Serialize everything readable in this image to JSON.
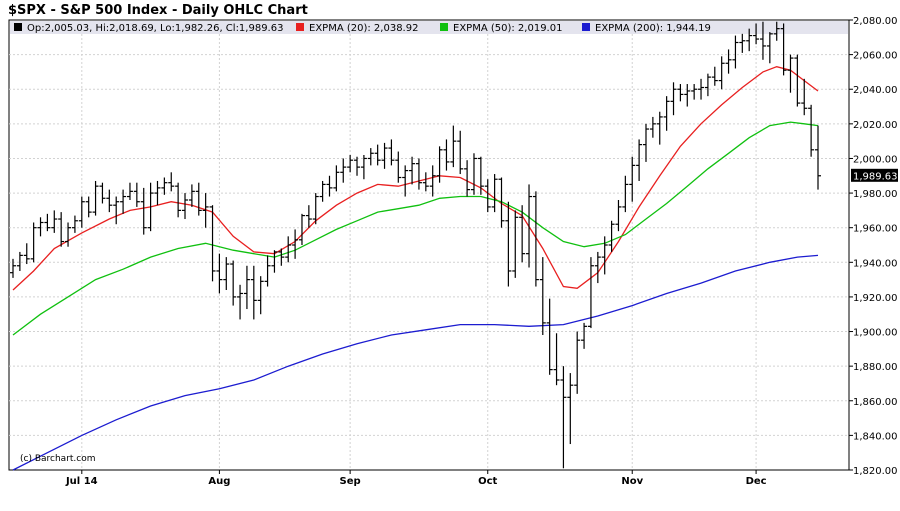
{
  "chart_data": {
    "type": "line",
    "title": "$SPX - S&P 500 Index - Daily OHLC Chart",
    "ohlc_readout": "Op:2,005.03, Hi:2,018.69, Lo:1,982.26, Cl:1,989.63",
    "last_close_label": "1,989.63",
    "credit": "(c) Barchart.com",
    "ylim": [
      1820,
      2080
    ],
    "y_ticks": [
      "2,080.00",
      "2,060.00",
      "2,040.00",
      "2,020.00",
      "2,000.00",
      "1,980.00",
      "1,960.00",
      "1,940.00",
      "1,920.00",
      "1,900.00",
      "1,880.00",
      "1,860.00",
      "1,840.00",
      "1,820.00"
    ],
    "y_tick_values": [
      2080,
      2060,
      2040,
      2020,
      2000,
      1980,
      1960,
      1940,
      1920,
      1900,
      1880,
      1860,
      1840,
      1820
    ],
    "x_range": [
      0,
      118
    ],
    "x_ticks": [
      {
        "label": "Jul 14",
        "x": 10
      },
      {
        "label": "Aug",
        "x": 30
      },
      {
        "label": "Sep",
        "x": 49
      },
      {
        "label": "Oct",
        "x": 69
      },
      {
        "label": "Nov",
        "x": 90
      },
      {
        "label": "Dec",
        "x": 108
      }
    ],
    "grid": true,
    "series": [
      {
        "name": "EXPMA (20): 2,038.92",
        "color": "#e82020",
        "points": [
          [
            0,
            1924
          ],
          [
            3,
            1935
          ],
          [
            6,
            1948
          ],
          [
            10,
            1957
          ],
          [
            14,
            1965
          ],
          [
            17,
            1970
          ],
          [
            20,
            1972
          ],
          [
            23,
            1975
          ],
          [
            26,
            1973
          ],
          [
            29,
            1969
          ],
          [
            32,
            1955
          ],
          [
            35,
            1946
          ],
          [
            38,
            1945
          ],
          [
            41,
            1952
          ],
          [
            44,
            1964
          ],
          [
            47,
            1973
          ],
          [
            50,
            1980
          ],
          [
            53,
            1985
          ],
          [
            56,
            1984
          ],
          [
            59,
            1987
          ],
          [
            62,
            1990
          ],
          [
            65,
            1989
          ],
          [
            68,
            1983
          ],
          [
            71,
            1974
          ],
          [
            74,
            1967
          ],
          [
            77,
            1948
          ],
          [
            80,
            1926
          ],
          [
            82,
            1925
          ],
          [
            85,
            1934
          ],
          [
            88,
            1952
          ],
          [
            91,
            1972
          ],
          [
            94,
            1990
          ],
          [
            97,
            2007
          ],
          [
            100,
            2020
          ],
          [
            103,
            2031
          ],
          [
            106,
            2041
          ],
          [
            109,
            2050
          ],
          [
            111,
            2053
          ],
          [
            113,
            2051
          ],
          [
            115,
            2045
          ],
          [
            117,
            2039
          ]
        ]
      },
      {
        "name": "EXPMA (50): 2,019.01",
        "color": "#10c010",
        "points": [
          [
            0,
            1898
          ],
          [
            4,
            1910
          ],
          [
            8,
            1920
          ],
          [
            12,
            1930
          ],
          [
            16,
            1936
          ],
          [
            20,
            1943
          ],
          [
            24,
            1948
          ],
          [
            28,
            1951
          ],
          [
            32,
            1947
          ],
          [
            35,
            1945
          ],
          [
            38,
            1943
          ],
          [
            41,
            1947
          ],
          [
            44,
            1953
          ],
          [
            47,
            1959
          ],
          [
            50,
            1964
          ],
          [
            53,
            1969
          ],
          [
            56,
            1971
          ],
          [
            59,
            1973
          ],
          [
            62,
            1977
          ],
          [
            65,
            1978
          ],
          [
            68,
            1978
          ],
          [
            71,
            1975
          ],
          [
            74,
            1969
          ],
          [
            77,
            1960
          ],
          [
            80,
            1952
          ],
          [
            83,
            1949
          ],
          [
            86,
            1951
          ],
          [
            89,
            1956
          ],
          [
            92,
            1965
          ],
          [
            95,
            1974
          ],
          [
            98,
            1984
          ],
          [
            101,
            1994
          ],
          [
            104,
            2003
          ],
          [
            107,
            2012
          ],
          [
            110,
            2019
          ],
          [
            113,
            2021
          ],
          [
            115,
            2020
          ],
          [
            117,
            2019
          ]
        ]
      },
      {
        "name": "EXPMA (200): 1,944.19",
        "color": "#1c1cd0",
        "points": [
          [
            0,
            1820
          ],
          [
            5,
            1830
          ],
          [
            10,
            1840
          ],
          [
            15,
            1849
          ],
          [
            20,
            1857
          ],
          [
            25,
            1863
          ],
          [
            30,
            1867
          ],
          [
            35,
            1872
          ],
          [
            40,
            1880
          ],
          [
            45,
            1887
          ],
          [
            50,
            1893
          ],
          [
            55,
            1898
          ],
          [
            60,
            1901
          ],
          [
            65,
            1904
          ],
          [
            70,
            1904
          ],
          [
            75,
            1903
          ],
          [
            80,
            1904
          ],
          [
            85,
            1909
          ],
          [
            90,
            1915
          ],
          [
            95,
            1922
          ],
          [
            100,
            1928
          ],
          [
            105,
            1935
          ],
          [
            110,
            1940
          ],
          [
            114,
            1943
          ],
          [
            117,
            1944
          ]
        ]
      }
    ],
    "bars": [
      [
        0,
        1934,
        1942,
        1931,
        1938
      ],
      [
        1,
        1938,
        1946,
        1935,
        1944
      ],
      [
        2,
        1944,
        1951,
        1939,
        1942
      ],
      [
        3,
        1942,
        1963,
        1940,
        1960
      ],
      [
        4,
        1960,
        1966,
        1955,
        1963
      ],
      [
        5,
        1963,
        1968,
        1958,
        1960
      ],
      [
        6,
        1960,
        1970,
        1957,
        1965
      ],
      [
        7,
        1965,
        1969,
        1949,
        1952
      ],
      [
        8,
        1952,
        1963,
        1949,
        1960
      ],
      [
        9,
        1960,
        1967,
        1957,
        1964
      ],
      [
        10,
        1964,
        1978,
        1960,
        1975
      ],
      [
        11,
        1975,
        1978,
        1966,
        1969
      ],
      [
        12,
        1969,
        1987,
        1967,
        1984
      ],
      [
        13,
        1984,
        1986,
        1974,
        1977
      ],
      [
        14,
        1977,
        1982,
        1969,
        1973
      ],
      [
        15,
        1973,
        1978,
        1962,
        1975
      ],
      [
        16,
        1975,
        1982,
        1968,
        1978
      ],
      [
        17,
        1978,
        1986,
        1976,
        1981
      ],
      [
        18,
        1981,
        1986,
        1972,
        1975
      ],
      [
        19,
        1975,
        1983,
        1956,
        1960
      ],
      [
        20,
        1960,
        1986,
        1958,
        1980
      ],
      [
        21,
        1980,
        1987,
        1973,
        1983
      ],
      [
        22,
        1983,
        1989,
        1979,
        1986
      ],
      [
        23,
        1986,
        1992,
        1981,
        1984
      ],
      [
        24,
        1984,
        1986,
        1966,
        1970
      ],
      [
        25,
        1970,
        1980,
        1965,
        1976
      ],
      [
        26,
        1976,
        1985,
        1972,
        1981
      ],
      [
        27,
        1981,
        1986,
        1967,
        1970
      ],
      [
        28,
        1970,
        1980,
        1960,
        1972
      ],
      [
        29,
        1972,
        1973,
        1929,
        1935
      ],
      [
        30,
        1935,
        1945,
        1922,
        1930
      ],
      [
        31,
        1930,
        1943,
        1924,
        1939
      ],
      [
        32,
        1939,
        1941,
        1915,
        1920
      ],
      [
        33,
        1920,
        1927,
        1907,
        1922
      ],
      [
        34,
        1922,
        1938,
        1913,
        1930
      ],
      [
        35,
        1930,
        1938,
        1907,
        1918
      ],
      [
        36,
        1918,
        1932,
        1910,
        1929
      ],
      [
        37,
        1929,
        1944,
        1926,
        1938
      ],
      [
        38,
        1938,
        1947,
        1934,
        1946
      ],
      [
        39,
        1946,
        1948,
        1938,
        1943
      ],
      [
        40,
        1943,
        1955,
        1940,
        1950
      ],
      [
        41,
        1950,
        1959,
        1942,
        1953
      ],
      [
        42,
        1953,
        1968,
        1950,
        1967
      ],
      [
        43,
        1967,
        1973,
        1960,
        1965
      ],
      [
        44,
        1965,
        1980,
        1962,
        1978
      ],
      [
        45,
        1978,
        1987,
        1975,
        1985
      ],
      [
        46,
        1985,
        1990,
        1978,
        1983
      ],
      [
        47,
        1983,
        1996,
        1981,
        1992
      ],
      [
        48,
        1992,
        2000,
        1986,
        1995
      ],
      [
        49,
        1995,
        2002,
        1992,
        1999
      ],
      [
        50,
        1999,
        2001,
        1990,
        1995
      ],
      [
        51,
        1995,
        2002,
        1988,
        2000
      ],
      [
        52,
        2000,
        2006,
        1996,
        2003
      ],
      [
        53,
        2003,
        2008,
        1996,
        1999
      ],
      [
        54,
        1999,
        2009,
        1994,
        2006
      ],
      [
        55,
        2006,
        2011,
        1996,
        1999
      ],
      [
        56,
        1999,
        2004,
        1986,
        1989
      ],
      [
        57,
        1989,
        1996,
        1978,
        1993
      ],
      [
        58,
        1993,
        2001,
        1985,
        1997
      ],
      [
        59,
        1997,
        2000,
        1982,
        1986
      ],
      [
        60,
        1986,
        1992,
        1981,
        1984
      ],
      [
        61,
        1984,
        1996,
        1978,
        1990
      ],
      [
        62,
        1990,
        2007,
        1986,
        2005
      ],
      [
        63,
        2005,
        2011,
        1993,
        1998
      ],
      [
        64,
        1998,
        2019,
        1995,
        2010
      ],
      [
        65,
        2010,
        2016,
        1991,
        1994
      ],
      [
        66,
        1994,
        1999,
        1978,
        1982
      ],
      [
        67,
        1982,
        2003,
        1979,
        2000
      ],
      [
        68,
        2000,
        2001,
        1979,
        1984
      ],
      [
        69,
        1984,
        1988,
        1969,
        1972
      ],
      [
        70,
        1972,
        1991,
        1969,
        1988
      ],
      [
        71,
        1988,
        1989,
        1960,
        1964
      ],
      [
        72,
        1964,
        1975,
        1926,
        1935
      ],
      [
        73,
        1935,
        1970,
        1931,
        1966
      ],
      [
        74,
        1966,
        1973,
        1940,
        1945
      ],
      [
        75,
        1945,
        1985,
        1937,
        1978
      ],
      [
        76,
        1978,
        1981,
        1926,
        1930
      ],
      [
        77,
        1930,
        1943,
        1898,
        1905
      ],
      [
        78,
        1905,
        1919,
        1875,
        1878
      ],
      [
        79,
        1878,
        1899,
        1869,
        1872
      ],
      [
        80,
        1872,
        1880,
        1821,
        1862
      ],
      [
        81,
        1862,
        1876,
        1835,
        1869
      ],
      [
        82,
        1869,
        1900,
        1864,
        1895
      ],
      [
        83,
        1895,
        1905,
        1890,
        1903
      ],
      [
        84,
        1903,
        1943,
        1902,
        1938
      ],
      [
        85,
        1938,
        1946,
        1928,
        1943
      ],
      [
        86,
        1943,
        1955,
        1933,
        1950
      ],
      [
        87,
        1950,
        1964,
        1946,
        1962
      ],
      [
        88,
        1962,
        1976,
        1958,
        1972
      ],
      [
        89,
        1972,
        1990,
        1969,
        1985
      ],
      [
        90,
        1985,
        2001,
        1975,
        1996
      ],
      [
        91,
        1996,
        2011,
        1987,
        2008
      ],
      [
        92,
        2008,
        2020,
        1998,
        2017
      ],
      [
        93,
        2017,
        2024,
        2012,
        2020
      ],
      [
        94,
        2020,
        2027,
        2008,
        2024
      ],
      [
        95,
        2024,
        2036,
        2016,
        2033
      ],
      [
        96,
        2033,
        2044,
        2025,
        2040
      ],
      [
        97,
        2040,
        2043,
        2033,
        2037
      ],
      [
        98,
        2037,
        2043,
        2030,
        2039
      ],
      [
        99,
        2039,
        2043,
        2034,
        2040
      ],
      [
        100,
        2040,
        2046,
        2034,
        2041
      ],
      [
        101,
        2041,
        2049,
        2036,
        2047
      ],
      [
        102,
        2047,
        2053,
        2042,
        2045
      ],
      [
        103,
        2045,
        2059,
        2040,
        2055
      ],
      [
        104,
        2055,
        2063,
        2049,
        2057
      ],
      [
        105,
        2057,
        2071,
        2052,
        2067
      ],
      [
        106,
        2067,
        2072,
        2061,
        2068
      ],
      [
        107,
        2068,
        2075,
        2062,
        2071
      ],
      [
        108,
        2071,
        2078,
        2066,
        2069
      ],
      [
        109,
        2069,
        2079,
        2057,
        2065
      ],
      [
        110,
        2065,
        2073,
        2055,
        2072
      ],
      [
        111,
        2072,
        2079,
        2068,
        2075
      ],
      [
        112,
        2075,
        2078,
        2048,
        2051
      ],
      [
        113,
        2051,
        2060,
        2038,
        2058
      ],
      [
        114,
        2058,
        2060,
        2030,
        2032
      ],
      [
        115,
        2032,
        2046,
        2025,
        2029
      ],
      [
        116,
        2029,
        2031,
        2001,
        2005
      ],
      [
        117,
        2005,
        2019,
        1982,
        1990
      ]
    ]
  }
}
